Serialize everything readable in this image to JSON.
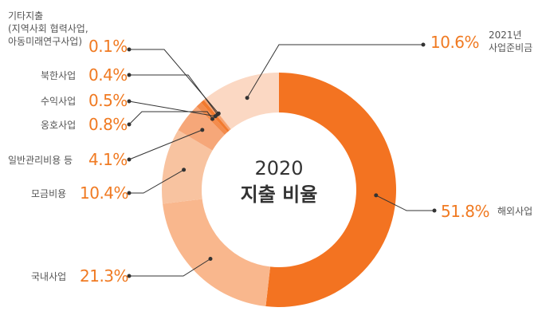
{
  "chart_data": {
    "type": "pie",
    "title": "2020",
    "subtitle": "지출 비율",
    "slices": [
      {
        "label": "해외사업",
        "value": 51.8,
        "display": "51.8%",
        "color": "#f37321"
      },
      {
        "label": "국내사업",
        "value": 21.3,
        "display": "21.3%",
        "color": "#f9b78d"
      },
      {
        "label": "모금비용",
        "value": 10.4,
        "display": "10.4%",
        "color": "#f8c3a0"
      },
      {
        "label": "일반관리비용 등",
        "value": 4.1,
        "display": "4.1%",
        "color": "#f6a779"
      },
      {
        "label": "옹호사업",
        "value": 0.8,
        "display": "0.8%",
        "color": "#f38c4d"
      },
      {
        "label": "수익사업",
        "value": 0.5,
        "display": "0.5%",
        "color": "#f27a2e"
      },
      {
        "label": "북한사업",
        "value": 0.4,
        "display": "0.4%",
        "color": "#f5a270"
      },
      {
        "label": "기타지출 (지역사회 협력사업, 아동미래연구사업)",
        "label_lines": [
          "기타지출",
          "(지역사회 협력사업,",
          "아동미래연구사업)"
        ],
        "value": 0.1,
        "display": "0.1%",
        "color": "#f9c19d"
      },
      {
        "label": "2021년 사업준비금",
        "label_lines": [
          "2021년",
          "사업준비금"
        ],
        "value": 10.6,
        "display": "10.6%",
        "color": "#fbd8c3"
      }
    ]
  },
  "colors": {
    "accent": "#f07a22",
    "leader": "#333333"
  }
}
